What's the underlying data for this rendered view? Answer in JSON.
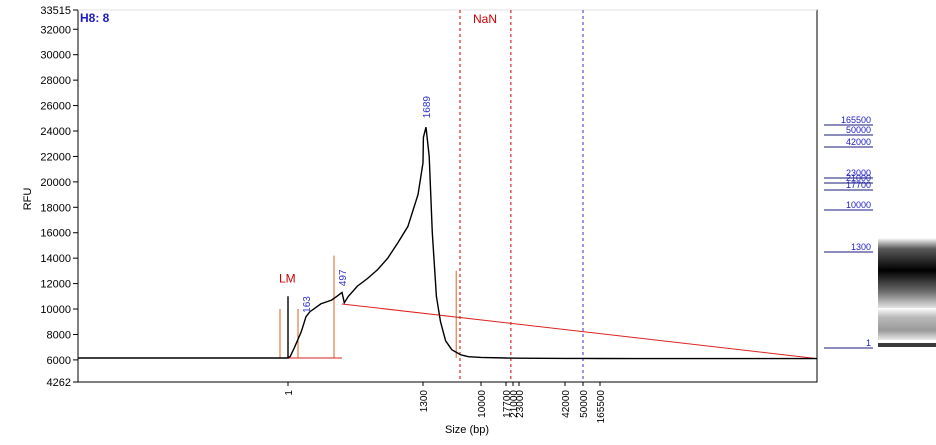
{
  "sample_label": "H8: 8",
  "chart_data": {
    "type": "line",
    "title": "",
    "xlabel": "Size (bp)",
    "ylabel": "RFU",
    "ylim": [
      4262,
      33515
    ],
    "y_ticks": [
      "4262",
      "6000",
      "8000",
      "10000",
      "12000",
      "14000",
      "16000",
      "18000",
      "20000",
      "22000",
      "24000",
      "26000",
      "28000",
      "30000",
      "32000",
      "33515"
    ],
    "x_ticks": [
      "1",
      "1300",
      "10000",
      "17700",
      "21000",
      "23000",
      "42000",
      "50000",
      "165500"
    ],
    "grid": false,
    "series": [
      {
        "color": "#000000",
        "points": [
          [
            0,
            6150
          ],
          [
            1,
            6150
          ],
          [
            1.01,
            6150
          ],
          [
            1.04,
            11000
          ],
          [
            1.08,
            9900
          ],
          [
            1.12,
            6300
          ],
          [
            1.2,
            6200
          ],
          [
            20,
            6250
          ],
          [
            60,
            7000
          ],
          [
            120,
            8200
          ],
          [
            163,
            9400
          ],
          [
            200,
            9800
          ],
          [
            250,
            10100
          ],
          [
            300,
            10400
          ],
          [
            400,
            10700
          ],
          [
            450,
            11000
          ],
          [
            497,
            11300
          ],
          [
            520,
            10500
          ],
          [
            560,
            11000
          ],
          [
            650,
            11800
          ],
          [
            750,
            12400
          ],
          [
            850,
            13100
          ],
          [
            950,
            14000
          ],
          [
            1050,
            15200
          ],
          [
            1150,
            16500
          ],
          [
            1250,
            19000
          ],
          [
            1300,
            21500
          ],
          [
            1350,
            23500
          ],
          [
            1689,
            24300
          ],
          [
            2000,
            22000
          ],
          [
            2300,
            16000
          ],
          [
            2700,
            11000
          ],
          [
            3100,
            9000
          ],
          [
            3600,
            7500
          ],
          [
            4200,
            6800
          ],
          [
            5200,
            6400
          ],
          [
            7000,
            6250
          ],
          [
            10000,
            6200
          ],
          [
            17700,
            6150
          ],
          [
            23000,
            6130
          ],
          [
            42000,
            6120
          ],
          [
            50000,
            6120
          ],
          [
            165500,
            6110
          ],
          [
            300000,
            6100
          ],
          [
            400000,
            6100
          ]
        ]
      }
    ],
    "peaks": [
      {
        "label": "LM",
        "x": 1,
        "y": 12400,
        "color": "#cc0000"
      },
      {
        "label": "163",
        "x": 163,
        "y": 9700,
        "color": "#3030d0"
      },
      {
        "label": "497",
        "x": 497,
        "y": 11800,
        "color": "#3030d0"
      },
      {
        "label": "1689",
        "x": 1689,
        "y": 25000,
        "color": "#3030d0"
      }
    ],
    "baseline": {
      "color": "#dd2222",
      "from": [
        497,
        10400
      ],
      "to": [
        400000,
        6100
      ]
    },
    "region_markers": [
      {
        "x": 1,
        "top": 10000,
        "color": "#e06020"
      },
      {
        "x": 163,
        "top": 10000,
        "color": "#e06020"
      },
      {
        "x": 497,
        "top": 14200,
        "color": "#e06020"
      },
      {
        "x": 6000,
        "top": 13000,
        "color": "#e06020"
      }
    ],
    "upper_markers": [
      {
        "x": 5000,
        "color": "#cc0000",
        "label": "NaN"
      },
      {
        "x": 20000,
        "color": "#cc0000",
        "label": ""
      },
      {
        "x": 50000,
        "color": "#3030c0",
        "label": ""
      }
    ],
    "ladder": [
      "165500",
      "50000",
      "42000",
      "23000",
      "21000",
      "17700",
      "10000",
      "1300",
      "1"
    ]
  }
}
